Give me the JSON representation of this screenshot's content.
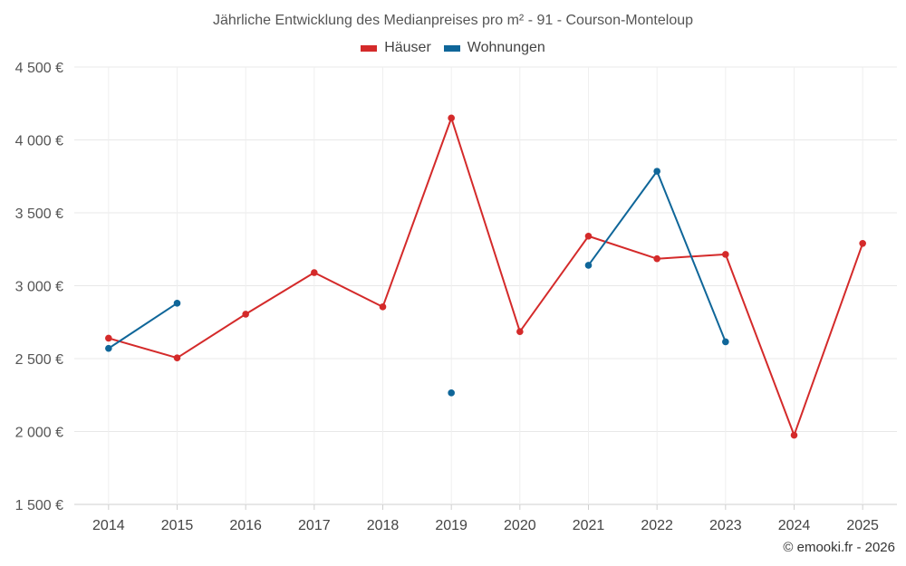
{
  "chart_data": {
    "type": "line",
    "title": "Jährliche Entwicklung des Medianpreises pro m² - 91 - Courson-Monteloup",
    "categories": [
      "2014",
      "2015",
      "2016",
      "2017",
      "2018",
      "2019",
      "2020",
      "2021",
      "2022",
      "2023",
      "2024",
      "2025"
    ],
    "ylim": [
      1500,
      4500
    ],
    "yticks": [
      1500,
      2000,
      2500,
      3000,
      3500,
      4000,
      4500
    ],
    "ytick_labels": [
      "1 500 €",
      "2 000 €",
      "2 500 €",
      "3 000 €",
      "3 500 €",
      "4 000 €",
      "4 500 €"
    ],
    "grid": true,
    "legend_position": "top-center",
    "series": [
      {
        "name": "Häuser",
        "color": "#d42a2a",
        "values": [
          2640,
          2505,
          2805,
          3090,
          2855,
          4150,
          2685,
          3340,
          3185,
          3215,
          1975,
          3290
        ]
      },
      {
        "name": "Wohnungen",
        "color": "#0f6699",
        "values": [
          2570,
          2880,
          null,
          null,
          null,
          2265,
          null,
          3140,
          3785,
          2615,
          null,
          null
        ]
      }
    ]
  },
  "credit": "© emooki.fr - 2026"
}
